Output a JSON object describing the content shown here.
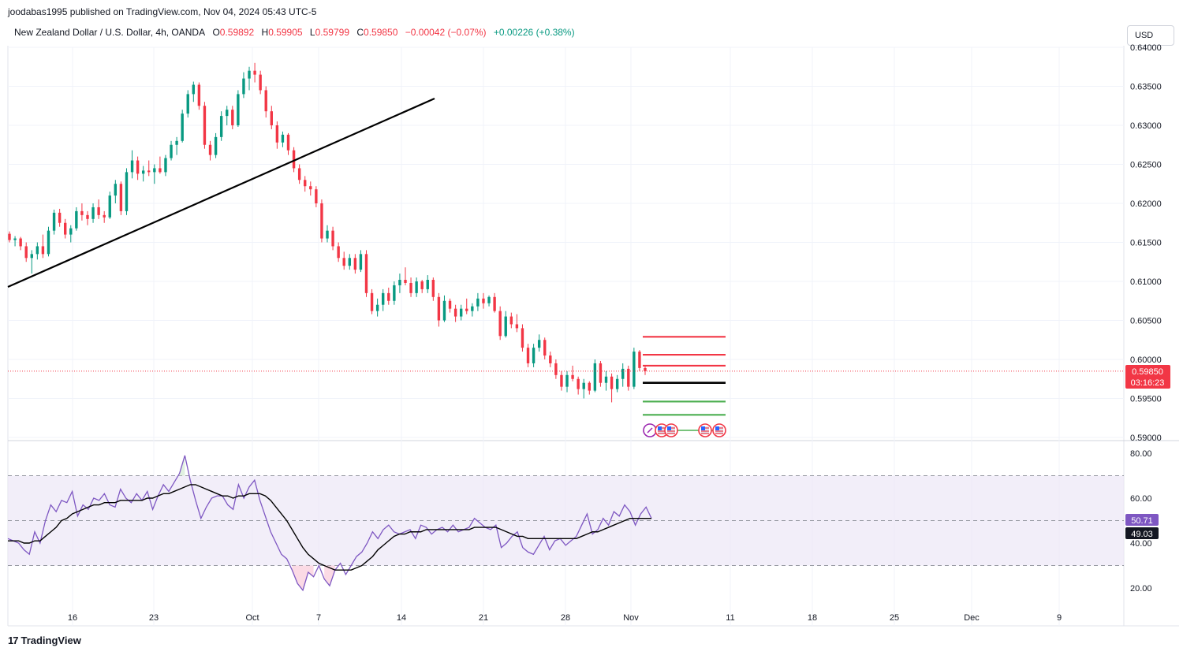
{
  "header": {
    "published_line": "joodabas1995 published on TradingView.com, Nov 04, 2024 05:43 UTC-5",
    "symbol": "New Zealand Dollar / U.S. Dollar, 4h, OANDA",
    "open_label": "O",
    "open": "0.59892",
    "high_label": "H",
    "high": "0.59905",
    "low_label": "L",
    "low": "0.59799",
    "close_label": "C",
    "close": "0.59850",
    "change": "−0.00042 (−0.07%)",
    "change2": "+0.00226 (+0.38%)",
    "currency_button": "USD"
  },
  "brand": {
    "logo_mark": "17",
    "name": "TradingView"
  },
  "price_tags": {
    "last_price": "0.59850",
    "countdown": "03:16:23",
    "rsi_value": "50.71",
    "rsi_ma_value": "49.03"
  },
  "colors": {
    "up": "#089981",
    "down": "#f23645",
    "trend_line": "#000000",
    "rsi_line": "#7e57c2",
    "rsi_band": "#ede7f6",
    "rsi_ma": "#000000",
    "level_red": "#f23645",
    "level_green": "#4caf50",
    "level_black": "#000000"
  },
  "chart_data": [
    {
      "type": "candlestick",
      "ylim": [
        0.5895,
        0.6405
      ],
      "y_ticks": [
        "0.64000",
        "0.63500",
        "0.63000",
        "0.62500",
        "0.62000",
        "0.61500",
        "0.61000",
        "0.60500",
        "0.60000",
        "0.59500",
        "0.59000"
      ],
      "x_ticks": [
        "16",
        "23",
        "Oct",
        "7",
        "14",
        "21",
        "28",
        "Nov",
        "11",
        "18",
        "25",
        "Dec",
        "9"
      ],
      "series": [
        {
          "values": [
            [
              0.6161,
              0.6164,
              0.615,
              0.6153
            ],
            [
              0.6153,
              0.6158,
              0.6145,
              0.6155
            ],
            [
              0.6155,
              0.6157,
              0.614,
              0.6145
            ],
            [
              0.6145,
              0.615,
              0.6125,
              0.613
            ],
            [
              0.613,
              0.614,
              0.611,
              0.6135
            ],
            [
              0.6135,
              0.615,
              0.6128,
              0.6145
            ],
            [
              0.6145,
              0.616,
              0.613,
              0.6135
            ],
            [
              0.6135,
              0.617,
              0.6132,
              0.6165
            ],
            [
              0.6165,
              0.6192,
              0.616,
              0.6188
            ],
            [
              0.6188,
              0.6193,
              0.617,
              0.6175
            ],
            [
              0.6175,
              0.618,
              0.6155,
              0.616
            ],
            [
              0.616,
              0.6172,
              0.615,
              0.6168
            ],
            [
              0.6168,
              0.6195,
              0.6165,
              0.619
            ],
            [
              0.619,
              0.62,
              0.6178,
              0.6185
            ],
            [
              0.6185,
              0.619,
              0.6172,
              0.618
            ],
            [
              0.618,
              0.62,
              0.6175,
              0.6195
            ],
            [
              0.6195,
              0.6205,
              0.618,
              0.6185
            ],
            [
              0.6185,
              0.619,
              0.6175,
              0.6182
            ],
            [
              0.6182,
              0.6215,
              0.618,
              0.621
            ],
            [
              0.621,
              0.623,
              0.62,
              0.6225
            ],
            [
              0.6225,
              0.6228,
              0.6185,
              0.619
            ],
            [
              0.619,
              0.6245,
              0.6185,
              0.624
            ],
            [
              0.624,
              0.6268,
              0.6232,
              0.6255
            ],
            [
              0.6255,
              0.626,
              0.623,
              0.6238
            ],
            [
              0.6238,
              0.6248,
              0.6228,
              0.6242
            ],
            [
              0.6242,
              0.6255,
              0.6235,
              0.624
            ],
            [
              0.624,
              0.625,
              0.6225,
              0.6245
            ],
            [
              0.6245,
              0.626,
              0.6238,
              0.624
            ],
            [
              0.624,
              0.6262,
              0.6235,
              0.6258
            ],
            [
              0.6258,
              0.628,
              0.6255,
              0.6275
            ],
            [
              0.6275,
              0.6285,
              0.6262,
              0.628
            ],
            [
              0.628,
              0.632,
              0.6278,
              0.6315
            ],
            [
              0.6315,
              0.6345,
              0.631,
              0.634
            ],
            [
              0.634,
              0.6356,
              0.633,
              0.6352
            ],
            [
              0.6352,
              0.6355,
              0.632,
              0.6325
            ],
            [
              0.6325,
              0.633,
              0.627,
              0.6275
            ],
            [
              0.6275,
              0.628,
              0.6255,
              0.6262
            ],
            [
              0.6262,
              0.629,
              0.6258,
              0.6285
            ],
            [
              0.6285,
              0.6318,
              0.628,
              0.6312
            ],
            [
              0.6312,
              0.6325,
              0.63,
              0.632
            ],
            [
              0.632,
              0.6325,
              0.6295,
              0.63
            ],
            [
              0.63,
              0.6345,
              0.6298,
              0.634
            ],
            [
              0.634,
              0.6368,
              0.6335,
              0.636
            ],
            [
              0.636,
              0.6375,
              0.6345,
              0.637
            ],
            [
              0.637,
              0.638,
              0.6355,
              0.6365
            ],
            [
              0.6365,
              0.637,
              0.634,
              0.6345
            ],
            [
              0.6345,
              0.635,
              0.631,
              0.6318
            ],
            [
              0.6318,
              0.6325,
              0.6295,
              0.63
            ],
            [
              0.63,
              0.6305,
              0.627,
              0.6278
            ],
            [
              0.6278,
              0.6292,
              0.6272,
              0.6288
            ],
            [
              0.6288,
              0.629,
              0.6262,
              0.6268
            ],
            [
              0.6268,
              0.6272,
              0.624,
              0.6245
            ],
            [
              0.6245,
              0.625,
              0.6225,
              0.623
            ],
            [
              0.623,
              0.6235,
              0.6215,
              0.6222
            ],
            [
              0.6222,
              0.6228,
              0.621,
              0.6218
            ],
            [
              0.6218,
              0.6222,
              0.6195,
              0.62
            ],
            [
              0.62,
              0.6205,
              0.615,
              0.6155
            ],
            [
              0.6155,
              0.6172,
              0.615,
              0.6165
            ],
            [
              0.6165,
              0.617,
              0.614,
              0.6145
            ],
            [
              0.6145,
              0.615,
              0.6125,
              0.613
            ],
            [
              0.613,
              0.6138,
              0.6115,
              0.612
            ],
            [
              0.612,
              0.6135,
              0.6115,
              0.613
            ],
            [
              0.613,
              0.6135,
              0.611,
              0.6115
            ],
            [
              0.6115,
              0.614,
              0.6112,
              0.6135
            ],
            [
              0.6135,
              0.614,
              0.608,
              0.6085
            ],
            [
              0.6085,
              0.609,
              0.6058,
              0.6062
            ],
            [
              0.6062,
              0.6078,
              0.6055,
              0.607
            ],
            [
              0.607,
              0.609,
              0.6062,
              0.6085
            ],
            [
              0.6085,
              0.6092,
              0.607,
              0.6075
            ],
            [
              0.6075,
              0.61,
              0.607,
              0.6095
            ],
            [
              0.6095,
              0.611,
              0.6085,
              0.6102
            ],
            [
              0.6102,
              0.6118,
              0.6095,
              0.6098
            ],
            [
              0.6098,
              0.6105,
              0.608,
              0.6085
            ],
            [
              0.6085,
              0.6105,
              0.608,
              0.61
            ],
            [
              0.61,
              0.6102,
              0.6085,
              0.609
            ],
            [
              0.609,
              0.6108,
              0.6085,
              0.6102
            ],
            [
              0.6102,
              0.6105,
              0.6075,
              0.608
            ],
            [
              0.608,
              0.6085,
              0.6042,
              0.605
            ],
            [
              0.605,
              0.6082,
              0.6048,
              0.6075
            ],
            [
              0.6075,
              0.6078,
              0.606,
              0.6065
            ],
            [
              0.6065,
              0.607,
              0.6048,
              0.6055
            ],
            [
              0.6055,
              0.607,
              0.605,
              0.6065
            ],
            [
              0.6065,
              0.6078,
              0.6058,
              0.6062
            ],
            [
              0.6062,
              0.6072,
              0.6055,
              0.6068
            ],
            [
              0.6068,
              0.6085,
              0.6062,
              0.6078
            ],
            [
              0.6078,
              0.6085,
              0.6065,
              0.6072
            ],
            [
              0.6072,
              0.6082,
              0.6068,
              0.608
            ],
            [
              0.608,
              0.6085,
              0.606,
              0.6062
            ],
            [
              0.6062,
              0.6068,
              0.6025,
              0.603
            ],
            [
              0.603,
              0.6062,
              0.6028,
              0.6055
            ],
            [
              0.6055,
              0.606,
              0.604,
              0.6045
            ],
            [
              0.6045,
              0.6058,
              0.6035,
              0.604
            ],
            [
              0.604,
              0.6045,
              0.601,
              0.6015
            ],
            [
              0.6015,
              0.602,
              0.599,
              0.5995
            ],
            [
              0.5995,
              0.602,
              0.599,
              0.6015
            ],
            [
              0.6015,
              0.6032,
              0.601,
              0.6025
            ],
            [
              0.6025,
              0.6028,
              0.6,
              0.6005
            ],
            [
              0.6005,
              0.601,
              0.599,
              0.5995
            ],
            [
              0.5995,
              0.6,
              0.5975,
              0.598
            ],
            [
              0.598,
              0.5985,
              0.596,
              0.5965
            ],
            [
              0.5965,
              0.5985,
              0.5958,
              0.598
            ],
            [
              0.598,
              0.5992,
              0.5972,
              0.5975
            ],
            [
              0.5975,
              0.5978,
              0.5955,
              0.5962
            ],
            [
              0.5962,
              0.5975,
              0.595,
              0.597
            ],
            [
              0.597,
              0.5972,
              0.5955,
              0.596
            ],
            [
              0.596,
              0.6,
              0.5958,
              0.5995
            ],
            [
              0.5995,
              0.5998,
              0.5965,
              0.597
            ],
            [
              0.597,
              0.5985,
              0.596,
              0.5978
            ],
            [
              0.5978,
              0.5982,
              0.5945,
              0.5962
            ],
            [
              0.5962,
              0.598,
              0.5958,
              0.5975
            ],
            [
              0.5975,
              0.5995,
              0.5965,
              0.5988
            ],
            [
              0.5988,
              0.5992,
              0.596,
              0.5965
            ],
            [
              0.5965,
              0.6015,
              0.5962,
              0.601
            ],
            [
              0.601,
              0.6012,
              0.5985,
              0.5989
            ],
            [
              0.5989,
              0.5991,
              0.598,
              0.5985
            ]
          ]
        }
      ],
      "trend_line": {
        "from": [
          0.6092,
          0
        ],
        "to": [
          0.6332,
          0.3645
        ]
      },
      "annotations": {
        "levels_red": [
          0.6029,
          0.6006,
          0.5992
        ],
        "level_black": [
          0.597
        ],
        "levels_green": [
          0.5946,
          0.5929
        ],
        "last_price": 0.5985,
        "event_markers": 5
      }
    },
    {
      "type": "line",
      "title": "",
      "ylim": [
        15,
        82
      ],
      "y_ticks": [
        "80.00",
        "60.00",
        "40.00",
        "20.00"
      ],
      "bands": [
        70,
        50,
        30
      ],
      "series": [
        {
          "values": [
            42,
            41,
            40,
            37,
            35,
            45,
            40,
            50,
            57,
            54,
            59,
            58,
            63,
            52,
            57,
            55,
            60,
            59,
            62,
            57,
            56,
            64,
            60,
            58,
            62,
            59,
            63,
            55,
            61,
            66,
            63,
            67,
            71,
            79,
            68,
            59,
            51,
            56,
            60,
            61,
            61,
            57,
            55,
            66,
            60,
            65,
            68,
            59,
            52,
            45,
            40,
            35,
            33,
            28,
            22,
            19,
            27,
            25,
            30,
            24,
            21,
            28,
            31,
            26,
            30,
            34,
            36,
            40,
            45,
            42,
            46,
            48,
            45,
            44,
            45,
            46,
            42,
            48,
            47,
            44,
            46,
            47,
            45,
            48,
            45,
            46,
            47,
            51,
            49,
            47,
            46,
            48,
            38,
            40,
            43,
            45,
            38,
            36,
            35,
            39,
            43,
            37,
            41,
            42,
            39,
            41,
            43,
            48,
            53,
            44,
            46,
            51,
            48,
            54,
            52,
            57,
            54,
            48,
            53,
            56,
            51
          ]
        },
        {
          "values": [
            41,
            41,
            41,
            40,
            40,
            41,
            41,
            43,
            45,
            47,
            50,
            51,
            53,
            54,
            55,
            56,
            57,
            57,
            58,
            58,
            58,
            59,
            59,
            59,
            59,
            59,
            60,
            60,
            61,
            62,
            62,
            63,
            64,
            65,
            66,
            66,
            65,
            64,
            63,
            62,
            61,
            61,
            60,
            61,
            61,
            62,
            62,
            62,
            61,
            59,
            56,
            53,
            50,
            46,
            42,
            38,
            35,
            33,
            31,
            30,
            29,
            28,
            28,
            28,
            28,
            29,
            30,
            32,
            34,
            37,
            39,
            41,
            43,
            44,
            44,
            45,
            45,
            45,
            46,
            46,
            46,
            46,
            46,
            46,
            46,
            46,
            46,
            47,
            47,
            47,
            47,
            47,
            46,
            45,
            44,
            43,
            43,
            42,
            42,
            42,
            42,
            42,
            42,
            42,
            42,
            42,
            42,
            43,
            44,
            45,
            45,
            46,
            47,
            48,
            49,
            50,
            51,
            51,
            51,
            51,
            51
          ]
        }
      ]
    }
  ]
}
